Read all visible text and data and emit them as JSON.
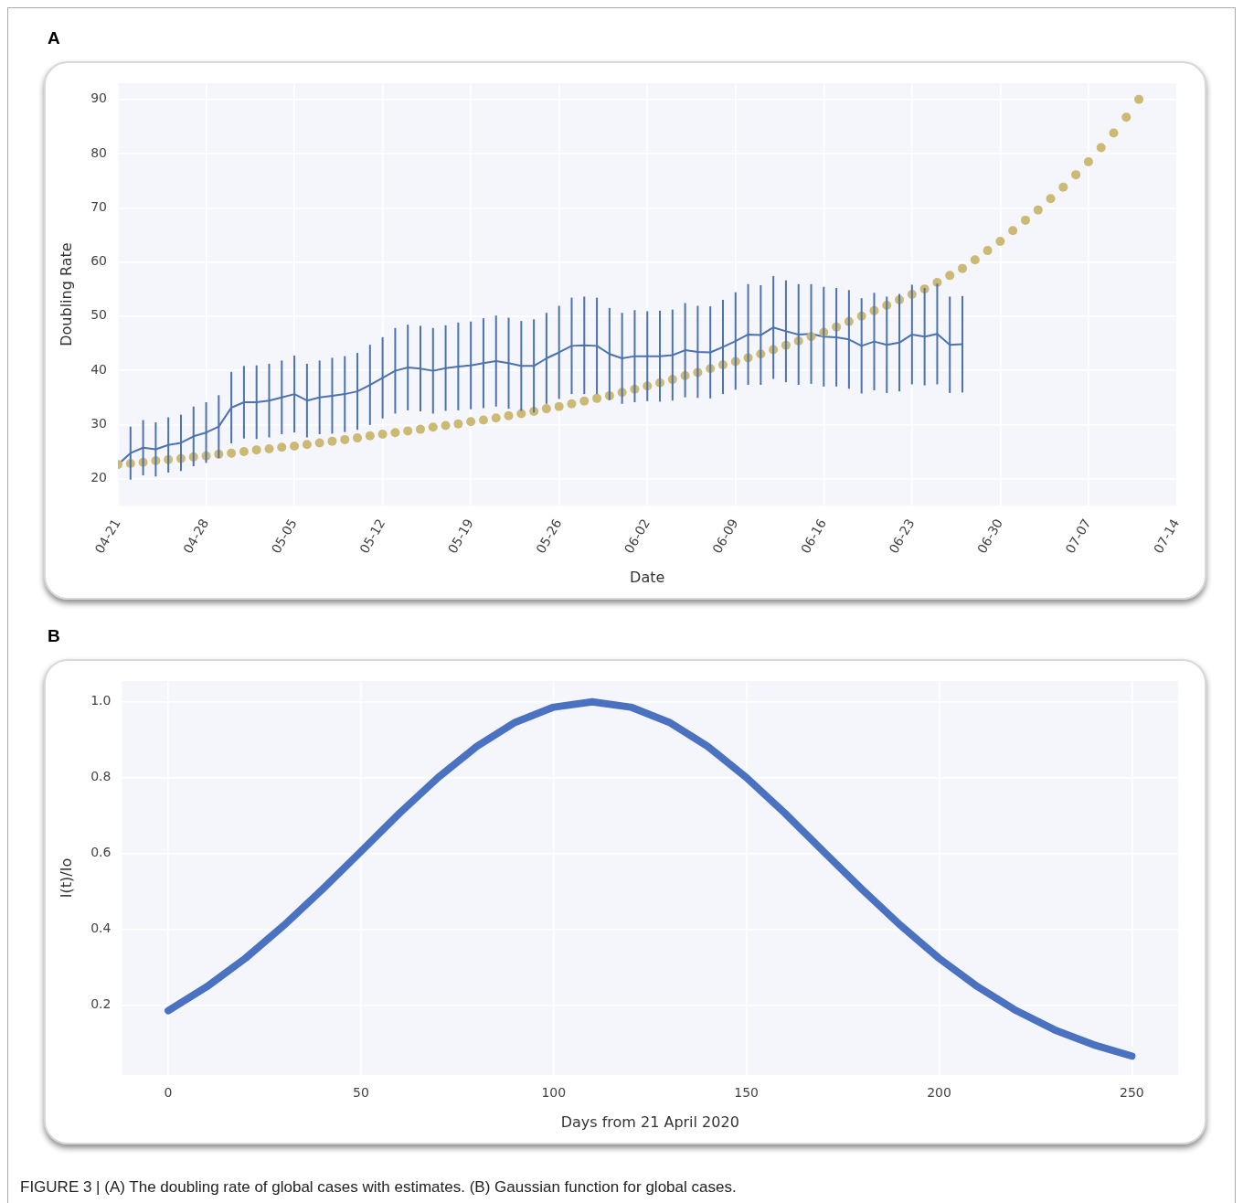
{
  "chart_data": [
    {
      "type": "line",
      "title": "A",
      "xlabel": "Date",
      "ylabel": "Doubling Rate",
      "x": [
        "--04-21",
        "--04-22",
        "--04-23",
        "--04-24",
        "--04-25",
        "--04-26",
        "--04-27",
        "--04-28",
        "--04-29",
        "--04-30",
        "--05-01",
        "--05-02",
        "--05-03",
        "--05-04",
        "--05-05",
        "--05-06",
        "--05-07",
        "--05-08",
        "--05-09",
        "--05-10",
        "--05-11",
        "--05-12",
        "--05-13",
        "--05-14",
        "--05-15",
        "--05-16",
        "--05-17",
        "--05-18",
        "--05-19",
        "--05-20",
        "--05-21",
        "--05-22",
        "--05-23",
        "--05-24",
        "--05-25",
        "--05-26",
        "--05-27",
        "--05-28",
        "--05-29",
        "--05-30",
        "--05-31",
        "--06-01",
        "--06-02",
        "--06-03",
        "--06-04",
        "--06-05",
        "--06-06",
        "--06-07",
        "--06-08",
        "--06-09",
        "--06-10",
        "--06-11",
        "--06-12",
        "--06-13",
        "--06-14",
        "--06-15",
        "--06-16",
        "--06-17",
        "--06-18",
        "--06-19",
        "--06-20",
        "--06-21",
        "--06-22",
        "--06-23",
        "--06-24",
        "--06-25",
        "--06-26",
        "--06-27",
        "--06-28",
        "--06-29",
        "--06-30",
        "--07-01",
        "--07-02",
        "--07-03",
        "--07-04",
        "--07-05",
        "--07-06",
        "--07-07",
        "--07-08",
        "--07-09",
        "--07-10",
        "--07-11"
      ],
      "series": [
        {
          "marker": "none",
          "color": "#4c72b0",
          "values": [
            22.6,
            24.7,
            25.7,
            25.4,
            26.2,
            26.6,
            27.8,
            28.5,
            29.6,
            33.1,
            34.1,
            34.1,
            34.4,
            35.0,
            35.6,
            34.4,
            35.0,
            35.3,
            35.6,
            36.1,
            37.3,
            38.6,
            39.9,
            40.5,
            40.3,
            39.9,
            40.4,
            40.7,
            40.9,
            41.3,
            41.7,
            41.3,
            40.8,
            40.8,
            42.2,
            43.3,
            44.5,
            44.6,
            44.5,
            43.0,
            42.2,
            42.6,
            42.6,
            42.6,
            42.8,
            43.7,
            43.4,
            43.3,
            44.3,
            45.4,
            46.6,
            46.5,
            47.9,
            47.2,
            46.6,
            46.7,
            46.2,
            46.1,
            45.7,
            44.5,
            45.3,
            44.7,
            45.1,
            46.6,
            46.2,
            46.7,
            44.7,
            44.8,
            null,
            null,
            null,
            null,
            null,
            null,
            null,
            null,
            null,
            null,
            null,
            null,
            null,
            null
          ],
          "errors": [
            null,
            4.9,
            5.1,
            5.0,
            5.1,
            5.2,
            5.5,
            5.6,
            5.8,
            6.6,
            6.7,
            6.8,
            6.8,
            6.8,
            7.1,
            6.8,
            6.8,
            7.0,
            7.0,
            7.1,
            7.4,
            7.5,
            7.9,
            7.9,
            7.9,
            7.9,
            7.9,
            8.1,
            8.1,
            8.3,
            8.4,
            8.4,
            8.3,
            8.6,
            8.4,
            8.6,
            8.9,
            9.0,
            8.9,
            8.5,
            8.4,
            8.5,
            8.3,
            8.4,
            8.4,
            8.7,
            8.5,
            8.5,
            8.7,
            9.0,
            9.3,
            9.2,
            9.5,
            9.4,
            9.3,
            9.2,
            9.2,
            9.1,
            9.1,
            8.8,
            9.0,
            8.9,
            9.0,
            9.2,
            9.0,
            9.3,
            8.9,
            8.9,
            null,
            null,
            null,
            null,
            null,
            null,
            null,
            null,
            null,
            null,
            null,
            null,
            null,
            null
          ]
        },
        {
          "type": "scatter",
          "marker": "circle",
          "color": "#ccb974",
          "values": [
            22.6,
            22.8,
            23.0,
            23.3,
            23.5,
            23.7,
            24.0,
            24.2,
            24.5,
            24.7,
            25.0,
            25.3,
            25.5,
            25.8,
            26.0,
            26.3,
            26.6,
            26.9,
            27.2,
            27.5,
            27.9,
            28.2,
            28.5,
            28.8,
            29.1,
            29.5,
            29.8,
            30.1,
            30.5,
            30.8,
            31.2,
            31.6,
            32.0,
            32.4,
            32.9,
            33.3,
            33.8,
            34.3,
            34.8,
            35.3,
            35.9,
            36.5,
            37.1,
            37.7,
            38.3,
            39.0,
            39.6,
            40.3,
            41.0,
            41.6,
            42.3,
            43.0,
            43.8,
            44.6,
            45.4,
            46.2,
            47.0,
            48.0,
            49.0,
            50.0,
            51.0,
            52.0,
            53.0,
            54.0,
            55.0,
            56.2,
            57.5,
            58.8,
            60.4,
            62.1,
            63.8,
            65.8,
            67.7,
            69.6,
            71.7,
            73.8,
            76.1,
            78.5,
            81.1,
            83.8,
            86.7,
            90.0
          ]
        }
      ],
      "xlim": [
        "--04-21",
        "--07-14"
      ],
      "xticks": [
        {
          "value": "--04-21",
          "label": "04-21"
        },
        {
          "value": "--04-28",
          "label": "04-28"
        },
        {
          "value": "--05-05",
          "label": "05-05"
        },
        {
          "value": "--05-12",
          "label": "05-12"
        },
        {
          "value": "--05-19",
          "label": "05-19"
        },
        {
          "value": "--05-26",
          "label": "05-26"
        },
        {
          "value": "--06-02",
          "label": "06-02"
        },
        {
          "value": "--06-09",
          "label": "06-09"
        },
        {
          "value": "--06-16",
          "label": "06-16"
        },
        {
          "value": "--06-23",
          "label": "06-23"
        },
        {
          "value": "--06-30",
          "label": "06-30"
        },
        {
          "value": "--07-07",
          "label": "07-07"
        },
        {
          "value": "--07-14",
          "label": "07-14"
        }
      ],
      "ylim": [
        15,
        93
      ],
      "yticks": [
        20,
        30,
        40,
        50,
        60,
        70,
        80,
        90
      ],
      "grid": true,
      "legend": false
    },
    {
      "type": "line",
      "title": "B",
      "xlabel": "Days from 21 April 2020",
      "ylabel": "I(t)/Io",
      "x": [
        0,
        10,
        20,
        30,
        40,
        50,
        60,
        70,
        80,
        90,
        100,
        110,
        120,
        130,
        140,
        150,
        160,
        170,
        180,
        190,
        200,
        210,
        220,
        230,
        240,
        250
      ],
      "series": [
        {
          "color": "#4a72c0",
          "marker": "none",
          "values": [
            0.185,
            0.248,
            0.323,
            0.41,
            0.505,
            0.605,
            0.706,
            0.8,
            0.882,
            0.946,
            0.986,
            1.0,
            0.986,
            0.946,
            0.882,
            0.8,
            0.706,
            0.605,
            0.505,
            0.41,
            0.323,
            0.248,
            0.185,
            0.134,
            0.095,
            0.065
          ]
        }
      ],
      "xlim": [
        -12,
        262
      ],
      "xticks": [
        0,
        50,
        100,
        150,
        200,
        250
      ],
      "ylim": [
        0.015,
        1.055
      ],
      "yticks": [
        {
          "value": 0.2,
          "label": "0.2"
        },
        {
          "value": 0.4,
          "label": "0.4"
        },
        {
          "value": 0.6,
          "label": "0.6"
        },
        {
          "value": 0.8,
          "label": "0.8"
        },
        {
          "value": 1,
          "label": "1.0"
        }
      ],
      "grid": true,
      "legend": false,
      "annotations": [
        "FIGURE 3 | (A) The doubling rate of global cases with estimates. (B) Gaussian function for global cases."
      ]
    }
  ]
}
